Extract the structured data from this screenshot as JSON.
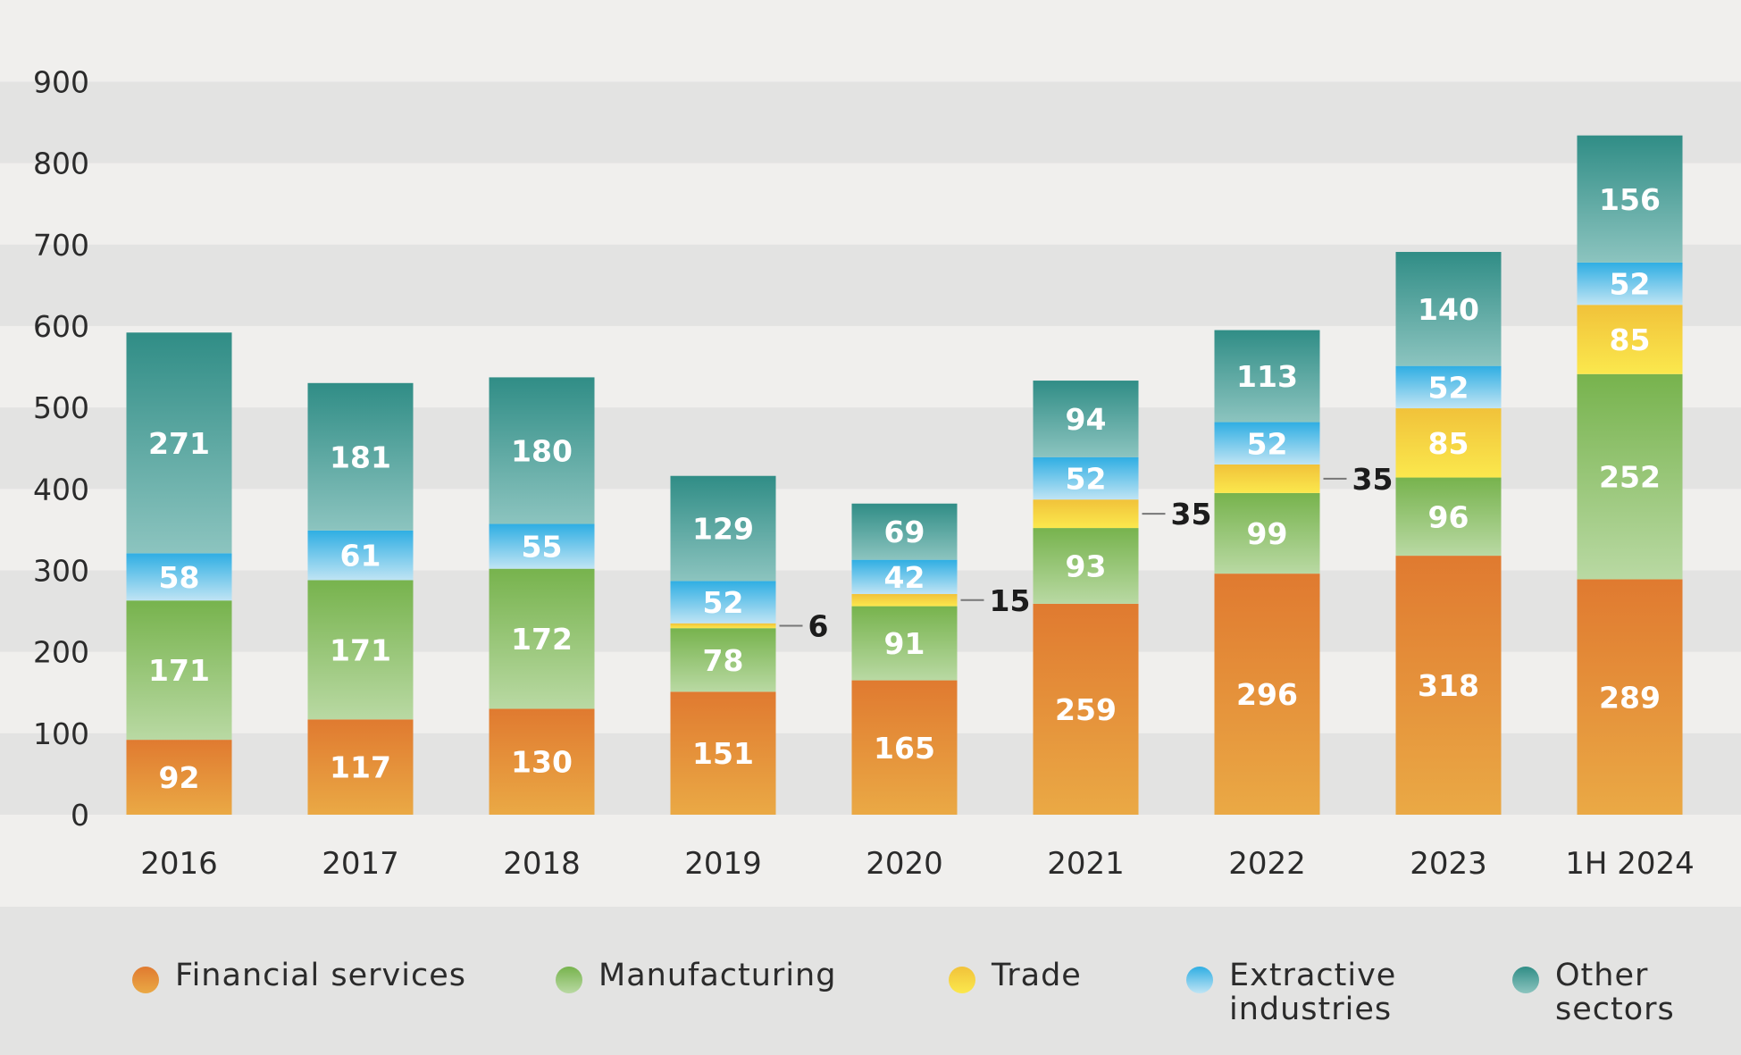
{
  "chart_data": {
    "type": "bar",
    "stacked": true,
    "title": "",
    "xlabel": "",
    "ylabel": "",
    "ylim": [
      0,
      900
    ],
    "yticks": [
      0,
      100,
      200,
      300,
      400,
      500,
      600,
      700,
      800,
      900
    ],
    "categories": [
      "2016",
      "2017",
      "2018",
      "2019",
      "2020",
      "2021",
      "2022",
      "2023",
      "1H 2024"
    ],
    "series": [
      {
        "name": "Financial services",
        "key": "fin",
        "values": [
          92,
          117,
          130,
          151,
          165,
          259,
          296,
          318,
          289
        ]
      },
      {
        "name": "Manufacturing",
        "key": "man",
        "values": [
          171,
          171,
          172,
          78,
          91,
          93,
          99,
          96,
          252
        ]
      },
      {
        "name": "Trade",
        "key": "trade",
        "values": [
          0,
          0,
          0,
          6,
          15,
          35,
          35,
          85,
          85
        ]
      },
      {
        "name": "Extractive industries",
        "key": "ext",
        "values": [
          58,
          61,
          55,
          52,
          42,
          52,
          52,
          52,
          52
        ]
      },
      {
        "name": "Other sectors",
        "key": "oth",
        "values": [
          271,
          181,
          180,
          129,
          69,
          94,
          113,
          140,
          156
        ]
      }
    ],
    "legend_position": "bottom",
    "grid": "horizontal bands"
  },
  "legend": [
    {
      "label": "Financial services",
      "color_top": "#e07a30",
      "color_bottom": "#eaa945"
    },
    {
      "label": "Manufacturing",
      "color_top": "#77b34d",
      "color_bottom": "#b9d9a3"
    },
    {
      "label": "Trade",
      "color_top": "#f1c23a",
      "color_bottom": "#fbe84d"
    },
    {
      "label": "Extractive\nindustries",
      "color_top": "#2faee3",
      "color_bottom": "#bfe4f4"
    },
    {
      "label": "Other\nsectors",
      "color_top": "#308d86",
      "color_bottom": "#8cc4bf"
    }
  ],
  "colors": {
    "band_dark": "#e3e3e2",
    "band_light": "#f0efed",
    "fin_top": "#e07a30",
    "fin_bottom": "#eaa945",
    "man_top": "#77b34d",
    "man_bottom": "#b9d9a3",
    "trade_top": "#f1c23a",
    "trade_bottom": "#fbe84d",
    "ext_top": "#2faee3",
    "ext_bottom": "#bfe4f4",
    "oth_top": "#308d86",
    "oth_bottom": "#8cc4bf"
  }
}
